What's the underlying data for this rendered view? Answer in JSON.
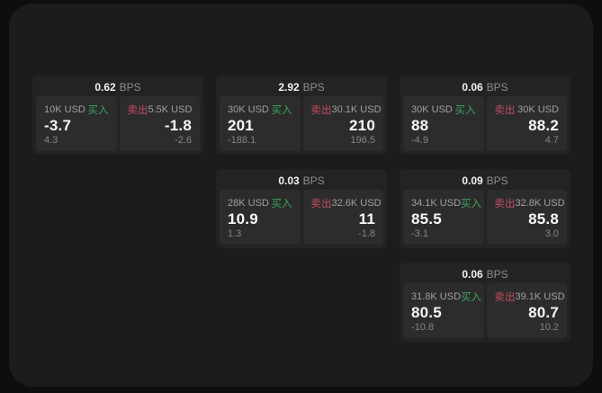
{
  "labels": {
    "buy": "买入",
    "sell": "卖出",
    "bps_suffix": "BPS"
  },
  "colors": {
    "buy_color": "#3da45a",
    "sell_color": "#c44d60",
    "panel_bg": "#1c1c1d",
    "card_bg": "#232324",
    "subcard_bg": "#2c2c2d"
  },
  "cards": [
    {
      "bps": "0.62",
      "buy": {
        "amount": "10K USD",
        "value": "-3.7",
        "delta": "4.3"
      },
      "sell": {
        "amount": "5.5K USD",
        "value": "-1.8",
        "delta": "-2.6"
      }
    },
    {
      "bps": "2.92",
      "buy": {
        "amount": "30K USD",
        "value": "201",
        "delta": "-188.1"
      },
      "sell": {
        "amount": "30.1K USD",
        "value": "210",
        "delta": "196.5"
      }
    },
    {
      "bps": "0.06",
      "buy": {
        "amount": "30K USD",
        "value": "88",
        "delta": "-4.9"
      },
      "sell": {
        "amount": "30K USD",
        "value": "88.2",
        "delta": "4.7"
      }
    },
    {
      "bps": "0.03",
      "buy": {
        "amount": "28K USD",
        "value": "10.9",
        "delta": "1.3"
      },
      "sell": {
        "amount": "32.6K USD",
        "value": "11",
        "delta": "-1.8"
      }
    },
    {
      "bps": "0.09",
      "buy": {
        "amount": "34.1K USD",
        "value": "85.5",
        "delta": "-3.1"
      },
      "sell": {
        "amount": "32.8K USD",
        "value": "85.8",
        "delta": "3.0"
      }
    },
    {
      "bps": "0.06",
      "buy": {
        "amount": "31.8K USD",
        "value": "80.5",
        "delta": "-10.8"
      },
      "sell": {
        "amount": "39.1K USD",
        "value": "80.7",
        "delta": "10.2"
      }
    }
  ]
}
